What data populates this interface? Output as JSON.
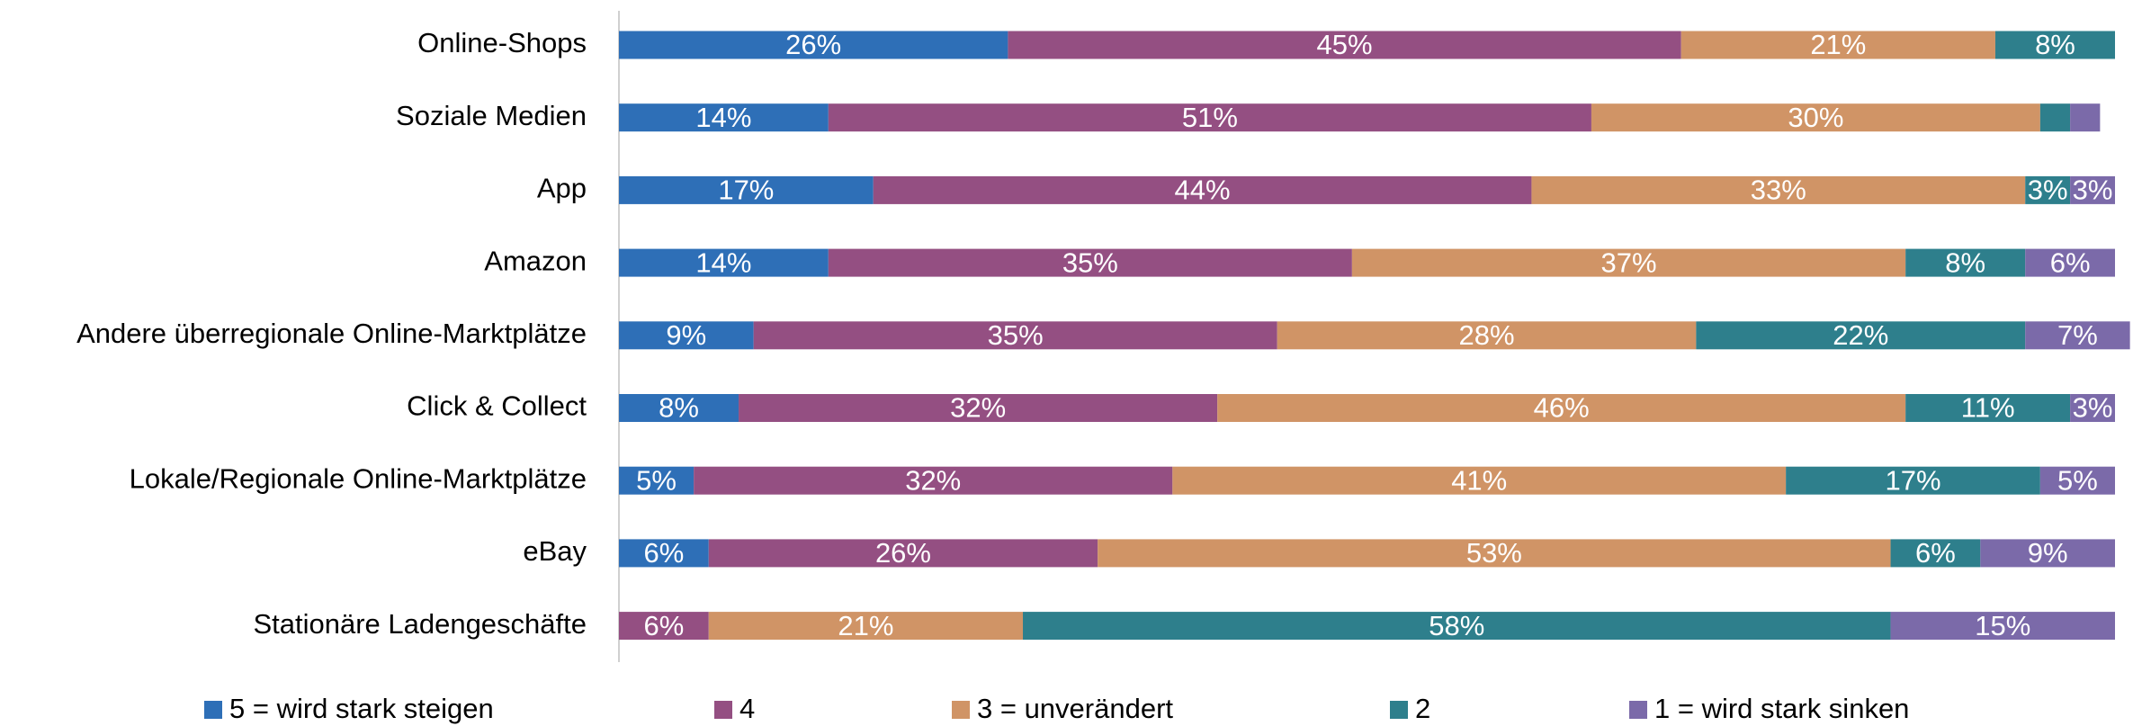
{
  "chart_data": {
    "type": "stacked_bar_horizontal",
    "categories": [
      "Online-Shops",
      "Soziale Medien",
      "App",
      "Amazon",
      "Andere überregionale Online-Marktplätze",
      "Click & Collect",
      "Lokale/Regionale Online-Marktplätze",
      "eBay",
      "Stationäre Ladengeschäfte"
    ],
    "xlim": [
      0,
      100
    ],
    "legend": "bottom",
    "series": [
      {
        "name": "5 = wird stark steigen",
        "color": "#2e6fb7",
        "values": [
          26,
          14,
          17,
          14,
          9,
          8,
          5,
          6,
          null
        ],
        "value_labels": [
          "26%",
          "14%",
          "17%",
          "14%",
          "9%",
          "8%",
          "5%",
          "6%",
          null
        ]
      },
      {
        "name": "4",
        "color": "#944f82",
        "values": [
          45,
          51,
          44,
          35,
          35,
          32,
          32,
          26,
          6
        ],
        "value_labels": [
          "45%",
          "51%",
          "44%",
          "35%",
          "35%",
          "32%",
          "32%",
          "26%",
          "6%"
        ]
      },
      {
        "name": "3 = unverändert",
        "color": "#d09466",
        "values": [
          21,
          30,
          33,
          37,
          28,
          46,
          41,
          53,
          21
        ],
        "value_labels": [
          "21%",
          "30%",
          "33%",
          "37%",
          "28%",
          "46%",
          "41%",
          "53%",
          "21%"
        ]
      },
      {
        "name": "2",
        "color": "#2e7f8c",
        "values": [
          8,
          2,
          3,
          8,
          22,
          11,
          17,
          6,
          58
        ],
        "value_labels": [
          "8%",
          null,
          "3%",
          "8%",
          "22%",
          "11%",
          "17%",
          "6%",
          "58%"
        ]
      },
      {
        "name": "1 = wird stark sinken",
        "color": "#7b6aa9",
        "values": [
          null,
          2,
          3,
          6,
          7,
          3,
          5,
          9,
          15
        ],
        "value_labels": [
          null,
          null,
          "3%",
          "6%",
          "7%",
          "3%",
          "5%",
          "9%",
          "15%"
        ]
      }
    ]
  }
}
